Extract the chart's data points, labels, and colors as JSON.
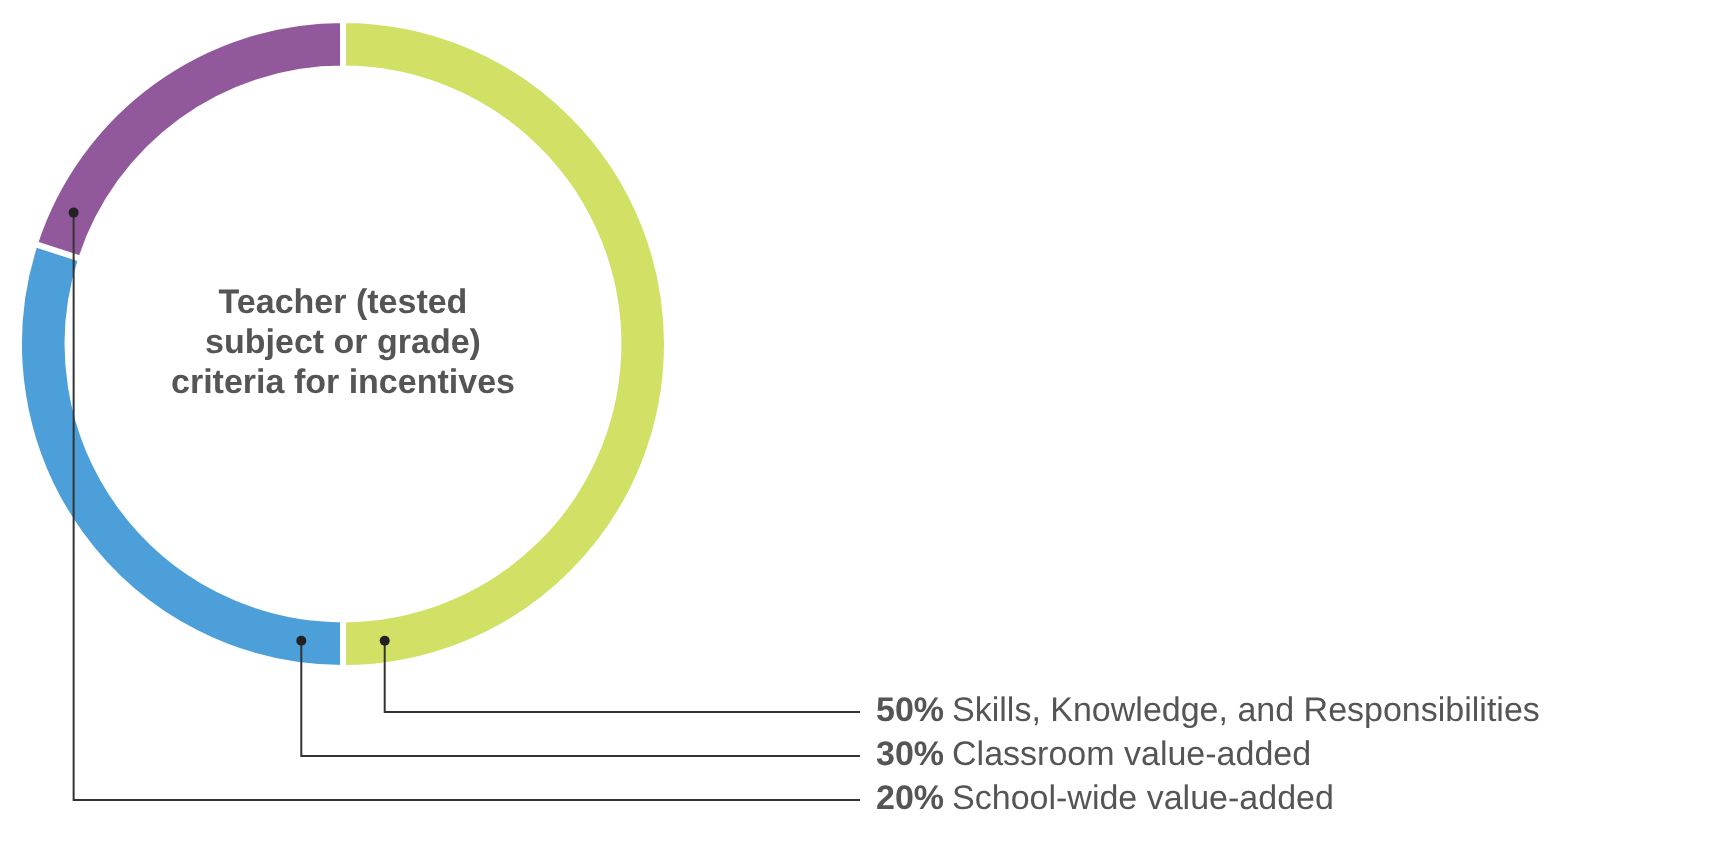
{
  "chart_data": {
    "type": "donut",
    "title": "Teacher (tested subject or grade) criteria for incentives",
    "categories": [
      "Skills, Knowledge, and Responsibilities",
      "Classroom value-added",
      "School-wide value-added"
    ],
    "values": [
      50,
      30,
      20
    ],
    "value_labels": [
      "50%",
      "30%",
      "20%"
    ],
    "colors": [
      "#d2e066",
      "#4d9fd9",
      "#91599b"
    ],
    "legend": false
  }
}
